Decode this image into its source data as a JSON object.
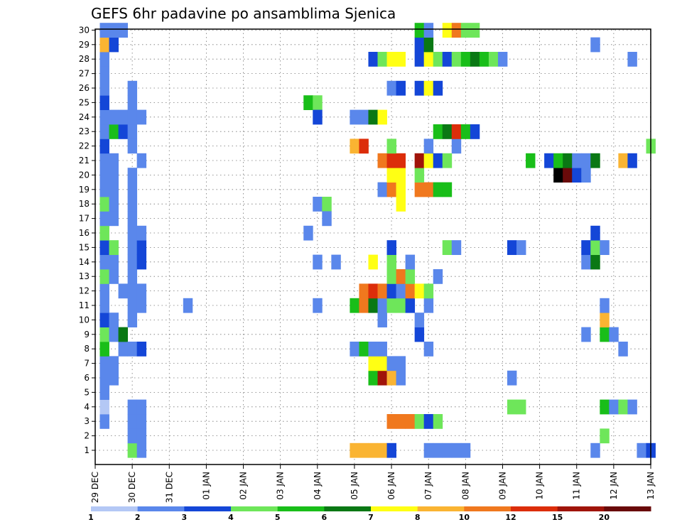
{
  "chart_data": {
    "type": "heatmap",
    "title": "GEFS 6hr padavine po ansamblima Sjenica",
    "y_members": [
      1,
      2,
      3,
      4,
      5,
      6,
      7,
      8,
      9,
      10,
      11,
      12,
      13,
      14,
      15,
      16,
      17,
      18,
      19,
      20,
      21,
      22,
      23,
      24,
      25,
      26,
      27,
      28,
      29,
      30
    ],
    "y_tick_labels": [
      "1",
      "2",
      "3",
      "4",
      "5",
      "6",
      "7",
      "8",
      "9",
      "10",
      "11",
      "12",
      "13",
      "14",
      "15",
      "16",
      "17",
      "18",
      "19",
      "20",
      "21",
      "22",
      "23",
      "24",
      "25",
      "26",
      "27",
      "28",
      "29",
      "30"
    ],
    "x_range_steps": [
      0,
      60
    ],
    "x_ticks": [
      {
        "step": 0,
        "label": "29 DEC"
      },
      {
        "step": 4,
        "label": "30 DEC"
      },
      {
        "step": 8,
        "label": "31 DEC"
      },
      {
        "step": 12,
        "label": "01 JAN"
      },
      {
        "step": 16,
        "label": "02 JAN"
      },
      {
        "step": 20,
        "label": "03 JAN"
      },
      {
        "step": 24,
        "label": "04 JAN"
      },
      {
        "step": 28,
        "label": "05 JAN"
      },
      {
        "step": 32,
        "label": "06 JAN"
      },
      {
        "step": 36,
        "label": "07 JAN"
      },
      {
        "step": 40,
        "label": "08 JAN"
      },
      {
        "step": 44,
        "label": "09 JAN"
      },
      {
        "step": 48,
        "label": "10 JAN"
      },
      {
        "step": 52,
        "label": "11 JAN"
      },
      {
        "step": 56,
        "label": "12 JAN"
      },
      {
        "step": 60,
        "label": "13 JAN"
      }
    ],
    "grid": true,
    "legend_position": "bottom",
    "colorbar": {
      "ticks": [
        "1",
        "2",
        "3",
        "4",
        "5",
        "6",
        "7",
        "8",
        "10",
        "12",
        "15",
        "20"
      ],
      "colors": [
        "#b4c8f5",
        "#5a87eb",
        "#1446d7",
        "#6ee65a",
        "#19be19",
        "#0a7814",
        "#ffff14",
        "#fab432",
        "#f0781e",
        "#dc2d0a",
        "#a0140a",
        "#690a0a"
      ]
    },
    "cells": [
      [
        1,
        3,
        1
      ],
      [
        1,
        4,
        0
      ],
      [
        1,
        5,
        1
      ],
      [
        1,
        6,
        1
      ],
      [
        1,
        7,
        1
      ],
      [
        1,
        8,
        4
      ],
      [
        1,
        9,
        3
      ],
      [
        1,
        10,
        2
      ],
      [
        1,
        11,
        1
      ],
      [
        1,
        12,
        1
      ],
      [
        1,
        13,
        3
      ],
      [
        1,
        14,
        1
      ],
      [
        1,
        15,
        2
      ],
      [
        1,
        16,
        3
      ],
      [
        1,
        17,
        1
      ],
      [
        1,
        18,
        3
      ],
      [
        1,
        19,
        1
      ],
      [
        1,
        20,
        1
      ],
      [
        1,
        21,
        1
      ],
      [
        1,
        22,
        2
      ],
      [
        1,
        23,
        1
      ],
      [
        1,
        24,
        1
      ],
      [
        1,
        25,
        2
      ],
      [
        1,
        26,
        1
      ],
      [
        1,
        27,
        1
      ],
      [
        1,
        28,
        1
      ],
      [
        1,
        29,
        7
      ],
      [
        1,
        30,
        1
      ],
      [
        2,
        6,
        1
      ],
      [
        2,
        7,
        1
      ],
      [
        2,
        9,
        1
      ],
      [
        2,
        10,
        1
      ],
      [
        2,
        13,
        1
      ],
      [
        2,
        14,
        1
      ],
      [
        2,
        15,
        3
      ],
      [
        2,
        17,
        1
      ],
      [
        2,
        18,
        1
      ],
      [
        2,
        19,
        1
      ],
      [
        2,
        20,
        1
      ],
      [
        2,
        21,
        1
      ],
      [
        2,
        23,
        4
      ],
      [
        2,
        24,
        1
      ],
      [
        2,
        29,
        2
      ],
      [
        2,
        30,
        1
      ],
      [
        3,
        8,
        1
      ],
      [
        3,
        9,
        5
      ],
      [
        3,
        12,
        1
      ],
      [
        3,
        23,
        2
      ],
      [
        3,
        24,
        1
      ],
      [
        3,
        30,
        1
      ],
      [
        4,
        1,
        3
      ],
      [
        4,
        2,
        1
      ],
      [
        4,
        3,
        1
      ],
      [
        4,
        4,
        1
      ],
      [
        4,
        8,
        1
      ],
      [
        4,
        10,
        1
      ],
      [
        4,
        11,
        1
      ],
      [
        4,
        12,
        1
      ],
      [
        4,
        13,
        1
      ],
      [
        4,
        14,
        1
      ],
      [
        4,
        15,
        1
      ],
      [
        4,
        16,
        1
      ],
      [
        4,
        17,
        1
      ],
      [
        4,
        18,
        1
      ],
      [
        4,
        19,
        1
      ],
      [
        4,
        20,
        1
      ],
      [
        4,
        22,
        1
      ],
      [
        4,
        23,
        1
      ],
      [
        4,
        24,
        1
      ],
      [
        4,
        25,
        1
      ],
      [
        4,
        26,
        1
      ],
      [
        5,
        1,
        1
      ],
      [
        5,
        2,
        1
      ],
      [
        5,
        3,
        1
      ],
      [
        5,
        4,
        1
      ],
      [
        5,
        8,
        2
      ],
      [
        5,
        11,
        1
      ],
      [
        5,
        12,
        1
      ],
      [
        5,
        14,
        2
      ],
      [
        5,
        15,
        2
      ],
      [
        5,
        16,
        1
      ],
      [
        5,
        21,
        1
      ],
      [
        5,
        24,
        1
      ],
      [
        10,
        11,
        1
      ],
      [
        23,
        25,
        4
      ],
      [
        23,
        16,
        1
      ],
      [
        24,
        25,
        3
      ],
      [
        24,
        24,
        2
      ],
      [
        24,
        14,
        1
      ],
      [
        24,
        18,
        1
      ],
      [
        24,
        11,
        1
      ],
      [
        25,
        18,
        3
      ],
      [
        25,
        17,
        1
      ],
      [
        26,
        14,
        1
      ],
      [
        28,
        1,
        7
      ],
      [
        28,
        8,
        1
      ],
      [
        28,
        11,
        4
      ],
      [
        28,
        22,
        7
      ],
      [
        28,
        24,
        1
      ],
      [
        29,
        1,
        7
      ],
      [
        29,
        8,
        4
      ],
      [
        29,
        11,
        8
      ],
      [
        29,
        12,
        8
      ],
      [
        29,
        22,
        9
      ],
      [
        29,
        24,
        1
      ],
      [
        30,
        1,
        7
      ],
      [
        30,
        6,
        4
      ],
      [
        30,
        7,
        6
      ],
      [
        30,
        8,
        1
      ],
      [
        30,
        11,
        5
      ],
      [
        30,
        12,
        9
      ],
      [
        30,
        14,
        6
      ],
      [
        30,
        24,
        5
      ],
      [
        30,
        28,
        2
      ],
      [
        31,
        1,
        7
      ],
      [
        31,
        6,
        10
      ],
      [
        31,
        7,
        6
      ],
      [
        31,
        8,
        1
      ],
      [
        31,
        10,
        1
      ],
      [
        31,
        11,
        1
      ],
      [
        31,
        12,
        8
      ],
      [
        31,
        19,
        1
      ],
      [
        31,
        21,
        8
      ],
      [
        31,
        24,
        6
      ],
      [
        31,
        28,
        3
      ],
      [
        32,
        1,
        2
      ],
      [
        32,
        3,
        8
      ],
      [
        32,
        6,
        7
      ],
      [
        32,
        7,
        1
      ],
      [
        32,
        11,
        3
      ],
      [
        32,
        12,
        2
      ],
      [
        32,
        13,
        3
      ],
      [
        32,
        14,
        3
      ],
      [
        32,
        15,
        2
      ],
      [
        32,
        19,
        8
      ],
      [
        32,
        20,
        6
      ],
      [
        32,
        21,
        9
      ],
      [
        32,
        22,
        3
      ],
      [
        32,
        26,
        1
      ],
      [
        32,
        28,
        6
      ],
      [
        33,
        3,
        8
      ],
      [
        33,
        6,
        1
      ],
      [
        33,
        7,
        1
      ],
      [
        33,
        11,
        3
      ],
      [
        33,
        12,
        1
      ],
      [
        33,
        13,
        8
      ],
      [
        33,
        18,
        6
      ],
      [
        33,
        19,
        6
      ],
      [
        33,
        20,
        6
      ],
      [
        33,
        21,
        9
      ],
      [
        33,
        26,
        2
      ],
      [
        33,
        28,
        6
      ],
      [
        34,
        3,
        8
      ],
      [
        34,
        11,
        2
      ],
      [
        34,
        12,
        8
      ],
      [
        34,
        13,
        3
      ],
      [
        34,
        14,
        1
      ],
      [
        35,
        3,
        3
      ],
      [
        35,
        9,
        2
      ],
      [
        35,
        10,
        1
      ],
      [
        35,
        12,
        6
      ],
      [
        35,
        19,
        8
      ],
      [
        35,
        20,
        3
      ],
      [
        35,
        21,
        10
      ],
      [
        35,
        28,
        2
      ],
      [
        35,
        29,
        2
      ],
      [
        35,
        30,
        4
      ],
      [
        35,
        26,
        2
      ],
      [
        36,
        1,
        1
      ],
      [
        36,
        3,
        2
      ],
      [
        36,
        8,
        1
      ],
      [
        36,
        11,
        1
      ],
      [
        36,
        12,
        3
      ],
      [
        36,
        19,
        8
      ],
      [
        36,
        21,
        6
      ],
      [
        36,
        22,
        1
      ],
      [
        36,
        26,
        6
      ],
      [
        36,
        28,
        6
      ],
      [
        36,
        29,
        5
      ],
      [
        36,
        30,
        1
      ],
      [
        37,
        1,
        1
      ],
      [
        37,
        3,
        3
      ],
      [
        37,
        13,
        1
      ],
      [
        37,
        19,
        4
      ],
      [
        37,
        21,
        2
      ],
      [
        37,
        23,
        4
      ],
      [
        37,
        26,
        2
      ],
      [
        37,
        28,
        3
      ],
      [
        38,
        1,
        1
      ],
      [
        38,
        15,
        3
      ],
      [
        38,
        19,
        4
      ],
      [
        38,
        21,
        3
      ],
      [
        38,
        23,
        5
      ],
      [
        38,
        28,
        2
      ],
      [
        38,
        30,
        6
      ],
      [
        39,
        1,
        1
      ],
      [
        39,
        15,
        1
      ],
      [
        39,
        22,
        1
      ],
      [
        39,
        23,
        9
      ],
      [
        39,
        28,
        3
      ],
      [
        39,
        30,
        8
      ],
      [
        40,
        1,
        1
      ],
      [
        40,
        23,
        4
      ],
      [
        40,
        28,
        4
      ],
      [
        40,
        30,
        3
      ],
      [
        41,
        23,
        2
      ],
      [
        41,
        28,
        5
      ],
      [
        41,
        30,
        3
      ],
      [
        42,
        28,
        4
      ],
      [
        43,
        28,
        3
      ],
      [
        44,
        28,
        1
      ],
      [
        45,
        4,
        3
      ],
      [
        45,
        6,
        1
      ],
      [
        45,
        15,
        2
      ],
      [
        46,
        4,
        3
      ],
      [
        46,
        15,
        1
      ],
      [
        47,
        21,
        4
      ],
      [
        49,
        21,
        2
      ],
      [
        50,
        20,
        12
      ],
      [
        50,
        21,
        4
      ],
      [
        51,
        20,
        11
      ],
      [
        51,
        21,
        5
      ],
      [
        52,
        20,
        2
      ],
      [
        52,
        21,
        1
      ],
      [
        53,
        9,
        1
      ],
      [
        53,
        14,
        1
      ],
      [
        53,
        15,
        2
      ],
      [
        53,
        20,
        1
      ],
      [
        53,
        21,
        1
      ],
      [
        54,
        1,
        1
      ],
      [
        54,
        14,
        5
      ],
      [
        54,
        15,
        3
      ],
      [
        54,
        16,
        2
      ],
      [
        54,
        21,
        5
      ],
      [
        54,
        29,
        1
      ],
      [
        55,
        2,
        3
      ],
      [
        55,
        4,
        4
      ],
      [
        55,
        9,
        4
      ],
      [
        55,
        10,
        7
      ],
      [
        55,
        11,
        1
      ],
      [
        55,
        15,
        1
      ],
      [
        56,
        4,
        1
      ],
      [
        56,
        9,
        1
      ],
      [
        57,
        4,
        3
      ],
      [
        57,
        8,
        1
      ],
      [
        57,
        21,
        7
      ],
      [
        58,
        4,
        1
      ],
      [
        58,
        21,
        2
      ],
      [
        58,
        28,
        1
      ],
      [
        59,
        1,
        1
      ],
      [
        60,
        1,
        2
      ],
      [
        60,
        22,
        3
      ]
    ]
  }
}
